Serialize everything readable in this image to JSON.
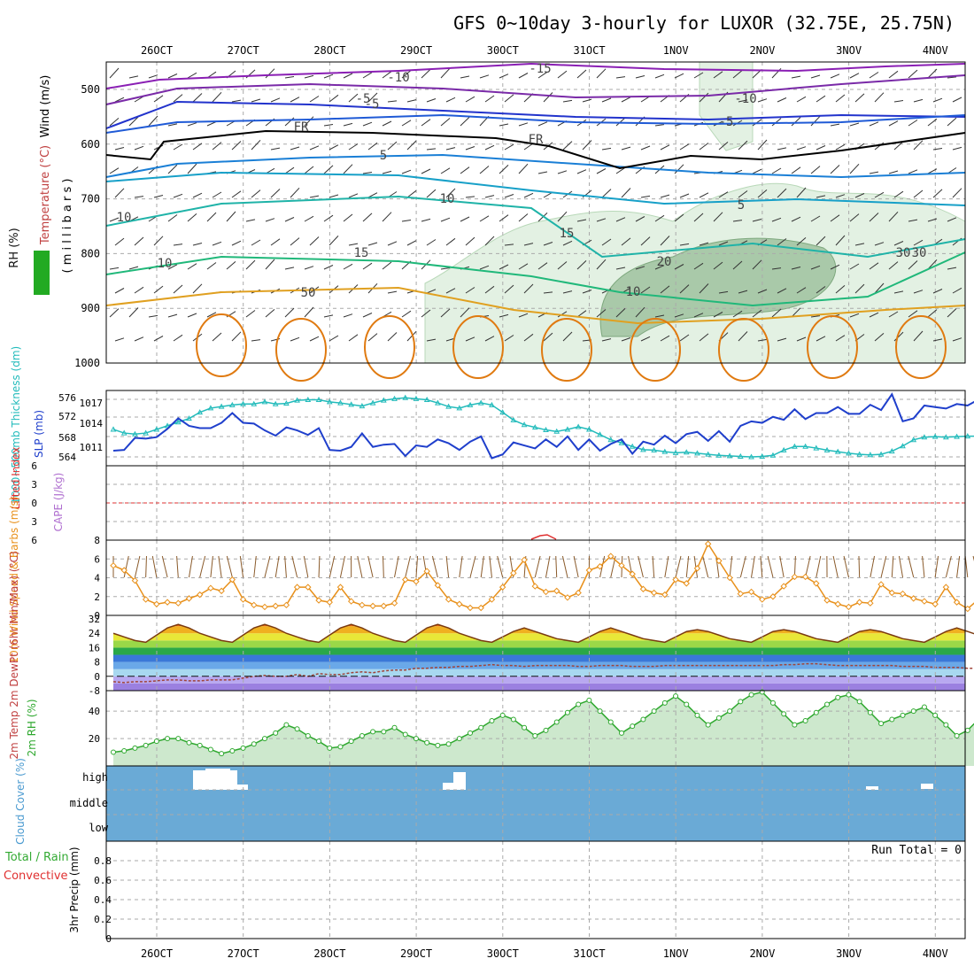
{
  "title": "GFS 0~10day 3-hourly for LUXOR (32.75E, 25.75N)",
  "date_labels": [
    "26OCT",
    "27OCT",
    "28OCT",
    "29OCT",
    "30OCT",
    "31OCT",
    "1NOV",
    "2NOV",
    "3NOV",
    "4NOV"
  ],
  "colors": {
    "grid": "#aaaaaa",
    "thickness": "#22bbbb",
    "slp": "#1f3fcc",
    "wind10": "#e8901a",
    "rh2m": "#2ea82e",
    "cloud": "#6aaad6",
    "precip_label_green": "#33aa33",
    "precip_label_red": "#e03030"
  },
  "panels": {
    "upper": {
      "ylabel_wind": "Wind (m/s)",
      "ylabel_temp": "Temperature (°C)",
      "ylabel_rh": "RH (%)",
      "ylabel_mb": "( m i l l i b a r s )",
      "yticks": [
        "500",
        "600",
        "700",
        "800",
        "900",
        "1000"
      ],
      "contour_labels": [
        "-15",
        "-10",
        "-10",
        "-5",
        "-5",
        "-5",
        "FR",
        "FR",
        "5",
        "5",
        "10",
        "10",
        "15",
        "15",
        "20",
        "10",
        "10",
        "50",
        "30",
        "30"
      ]
    },
    "thickness": {
      "ylabel_left": "1000~500mb Thickness (dm)",
      "ylabel_right": "SLP (mb)",
      "yticks_left": [
        "576",
        "572",
        "568",
        "564"
      ],
      "yticks_right": [
        "1017",
        "1014",
        "1011"
      ]
    },
    "stability": {
      "ylabel_left": "Lifted Index",
      "ylabel_right": "CAPE (J/kg)",
      "yticks": [
        "6",
        "3",
        "0",
        "3",
        "6"
      ]
    },
    "wind10": {
      "ylabel": "10m Wind Speed & Barbs (m/s)",
      "yticks": [
        "8",
        "6",
        "4",
        "2",
        "0"
      ]
    },
    "temp2m": {
      "ylabel": "2m Temp 2m DewPt (6hr Min/Max) (°C)",
      "yticks": [
        "32",
        "24",
        "16",
        "8",
        "0",
        "-8"
      ]
    },
    "rh2m": {
      "ylabel": "2m RH (%)",
      "yticks": [
        "40",
        "20"
      ]
    },
    "cloud": {
      "ylabel": "Cloud Cover (%)",
      "levels": [
        "high",
        "middle",
        "low"
      ]
    },
    "precip": {
      "ylabel_green": "Total / Rain",
      "ylabel_red": "Convective",
      "ylabel_units": "3hr Precip (mm)",
      "yticks": [
        "0.8",
        "0.6",
        "0.4",
        "0.2",
        "0"
      ],
      "run_total": "Run Total = 0"
    }
  },
  "chart_data": [
    {
      "type": "line",
      "name": "sea level pressure",
      "title": "SLP (mb)",
      "x_start": "2025-10-25 15Z",
      "x_step_hours": 3,
      "ylim": [
        1008.5,
        1018.5
      ],
      "values": [
        1010.5,
        1010.6,
        1012.2,
        1012.1,
        1012.3,
        1013.4,
        1014.8,
        1013.8,
        1013.5,
        1013.5,
        1014.2,
        1015.5,
        1014.2,
        1014.1,
        1013.2,
        1012.5,
        1013.6,
        1013.2,
        1012.6,
        1013.5,
        1010.6,
        1010.5,
        1011.0,
        1012.8,
        1011.0,
        1011.3,
        1011.4,
        1009.8,
        1011.2,
        1011.0,
        1012.0,
        1011.5,
        1010.6,
        1011.7,
        1012.4,
        1009.5,
        1010.0,
        1011.6,
        1011.2,
        1010.8,
        1012.0,
        1011.0,
        1012.4,
        1010.6,
        1012.0,
        1010.5,
        1011.4,
        1012.0,
        1010.1,
        1011.7,
        1011.3,
        1012.5,
        1011.5,
        1012.7,
        1013.0,
        1011.8,
        1013.1,
        1011.7,
        1013.8,
        1014.4,
        1014.2,
        1015.0,
        1014.6,
        1016.0,
        1014.7,
        1015.5,
        1015.5,
        1016.3,
        1015.4,
        1015.4,
        1016.6,
        1015.9,
        1018.0,
        1014.4,
        1014.8,
        1016.5,
        1016.3,
        1016.1,
        1016.7,
        1016.5,
        1017.3
      ]
    },
    {
      "type": "line",
      "name": "1000-500mb thickness",
      "title": "1000~500mb Thickness (dm)",
      "x_start": "2025-10-25 15Z",
      "x_step_hours": 3,
      "ylim": [
        562.5,
        577
      ],
      "values": [
        569.5,
        568.8,
        568.6,
        568.8,
        569.5,
        570.2,
        570.9,
        571.6,
        572.8,
        573.6,
        573.9,
        574.2,
        574.4,
        574.4,
        574.8,
        574.4,
        574.5,
        575.1,
        575.2,
        575.2,
        574.8,
        574.6,
        574.3,
        574.0,
        574.6,
        575.1,
        575.4,
        575.6,
        575.4,
        575.2,
        574.6,
        573.9,
        573.6,
        574.2,
        574.6,
        574.2,
        572.8,
        571.3,
        570.4,
        569.9,
        569.4,
        569.1,
        569.5,
        570.0,
        569.5,
        568.5,
        567.5,
        566.9,
        566.2,
        565.6,
        565.5,
        565.2,
        565.0,
        565.1,
        564.9,
        564.7,
        564.5,
        564.4,
        564.3,
        564.2,
        564.3,
        564.5,
        565.5,
        566.2,
        566.2,
        565.9,
        565.5,
        565.2,
        564.9,
        564.7,
        564.6,
        564.7,
        565.3,
        566.3,
        567.5,
        568.0,
        568.1,
        568.0,
        568.1,
        568.2,
        568.2,
        568.1,
        568.2,
        568.0,
        568.8,
        569.7,
        570.2,
        570.7,
        571.0,
        570.9,
        571.2,
        571.0,
        571.1,
        571.5,
        571.6
      ]
    },
    {
      "type": "line",
      "name": "10m wind speed",
      "title": "10m Wind Speed (m/s)",
      "x_start": "2025-10-25 15Z",
      "x_step_hours": 3,
      "ylim": [
        0,
        8
      ],
      "values": [
        5.3,
        4.8,
        3.7,
        1.7,
        1.2,
        1.4,
        1.3,
        1.8,
        2.2,
        2.9,
        2.6,
        3.8,
        1.7,
        1.1,
        0.9,
        1.0,
        1.1,
        3.0,
        3.0,
        1.6,
        1.4,
        3.0,
        1.5,
        1.1,
        1.0,
        1.0,
        1.3,
        3.8,
        3.6,
        4.7,
        3.2,
        1.7,
        1.2,
        0.8,
        0.8,
        1.7,
        3.0,
        4.5,
        5.9,
        3.1,
        2.5,
        2.6,
        1.9,
        2.4,
        4.8,
        5.2,
        6.3,
        5.3,
        4.4,
        2.8,
        2.4,
        2.2,
        3.8,
        3.4,
        5.0,
        7.6,
        5.8,
        4.0,
        2.3,
        2.5,
        1.7,
        2.0,
        3.1,
        4.1,
        4.1,
        3.4,
        1.6,
        1.2,
        0.9,
        1.4,
        1.3,
        3.3,
        2.4,
        2.3,
        1.8,
        1.5,
        1.2,
        3.0,
        1.4,
        0.7,
        1.7,
        2.9,
        4.1,
        1.4,
        1.1,
        1.2
      ]
    },
    {
      "type": "line",
      "name": "2m relative humidity",
      "title": "2m RH (%)",
      "x_start": "2025-10-25 15Z",
      "x_step_hours": 3,
      "ylim": [
        0,
        55
      ],
      "values": [
        10,
        11,
        13,
        15,
        18,
        20,
        20,
        17,
        15,
        12,
        9,
        11,
        13,
        16,
        20,
        24,
        30,
        27,
        22,
        18,
        13,
        14,
        18,
        22,
        25,
        25,
        28,
        23,
        20,
        17,
        15,
        16,
        20,
        24,
        28,
        33,
        37,
        34,
        28,
        22,
        26,
        32,
        39,
        45,
        48,
        40,
        32,
        24,
        29,
        34,
        40,
        46,
        51,
        45,
        37,
        30,
        35,
        40,
        47,
        52,
        54,
        46,
        38,
        30,
        33,
        39,
        45,
        50,
        52,
        47,
        39,
        31,
        34,
        37,
        40,
        43,
        37,
        30,
        22,
        26,
        34,
        45,
        48,
        41,
        30
      ]
    },
    {
      "type": "area",
      "name": "2m temperature",
      "title": "2m Temp (°C)",
      "x_start": "2025-10-25 15Z",
      "x_step_hours": 3,
      "ylim": [
        -8,
        34
      ],
      "values": [
        24,
        22,
        20,
        19,
        23,
        27,
        29,
        27,
        24,
        22,
        20,
        19,
        23,
        27,
        29,
        27,
        24,
        22,
        20,
        19,
        23,
        27,
        29,
        27,
        24,
        22,
        20,
        19,
        23,
        27,
        29,
        27,
        24,
        22,
        20,
        19,
        22,
        25,
        27,
        25,
        23,
        21,
        20,
        19,
        22,
        25,
        27,
        25,
        23,
        21,
        20,
        19,
        22,
        25,
        26,
        25,
        23,
        21,
        20,
        19,
        22,
        25,
        26,
        25,
        23,
        21,
        20,
        19,
        22,
        25,
        26,
        25,
        23,
        21,
        20,
        19,
        22,
        25,
        27,
        25,
        23,
        21,
        20,
        19,
        21,
        22
      ]
    },
    {
      "type": "line",
      "name": "2m dew point",
      "title": "2m DewPt (°C)",
      "x_start": "2025-10-25 15Z",
      "x_step_hours": 3,
      "ylim": [
        -8,
        34
      ],
      "values": [
        -3,
        -3.5,
        -3,
        -3,
        -2.5,
        -2,
        -2,
        -2.5,
        -2.5,
        -2,
        -2,
        -2,
        -1,
        0,
        0.5,
        0,
        0,
        1,
        0,
        1.5,
        1,
        1,
        2,
        2.5,
        2,
        3,
        3.5,
        3.5,
        4.5,
        4.5,
        5,
        5,
        5.5,
        5.5,
        6,
        6.5,
        6,
        6,
        5.5,
        6,
        6,
        6,
        6,
        5.5,
        5.5,
        6,
        6,
        6,
        5.5,
        5.5,
        5.5,
        6,
        6,
        6,
        6,
        6,
        6,
        6,
        6,
        6,
        6,
        6,
        6.5,
        6.5,
        7,
        7,
        6.5,
        6,
        6,
        6,
        6,
        6,
        6,
        5.5,
        5.5,
        5.5,
        5,
        5,
        5,
        4.5,
        4.5,
        4.5,
        4,
        4,
        3,
        1
      ]
    },
    {
      "type": "bar",
      "name": "cloud cover",
      "title": "Cloud Cover (%)",
      "levels": [
        "high",
        "middle",
        "low"
      ],
      "note": "clear sky (white) gaps in high cloud around 26-27OCT, 29OCT and 3-4NOV"
    },
    {
      "type": "bar",
      "name": "3hr precip",
      "title": "3hr Precip (mm)",
      "ylim": [
        0,
        1
      ],
      "values": [
        0,
        0,
        0,
        0,
        0,
        0,
        0,
        0,
        0,
        0,
        0,
        0,
        0,
        0,
        0,
        0,
        0,
        0,
        0,
        0,
        0,
        0,
        0,
        0,
        0,
        0,
        0,
        0,
        0,
        0,
        0,
        0,
        0,
        0,
        0,
        0,
        0,
        0,
        0,
        0,
        0,
        0,
        0,
        0,
        0,
        0,
        0,
        0,
        0,
        0,
        0,
        0,
        0,
        0,
        0,
        0,
        0,
        0,
        0,
        0,
        0,
        0,
        0,
        0,
        0,
        0,
        0,
        0,
        0,
        0,
        0,
        0,
        0,
        0,
        0,
        0,
        0,
        0,
        0,
        0,
        0,
        0,
        0,
        0,
        0,
        0
      ]
    }
  ]
}
